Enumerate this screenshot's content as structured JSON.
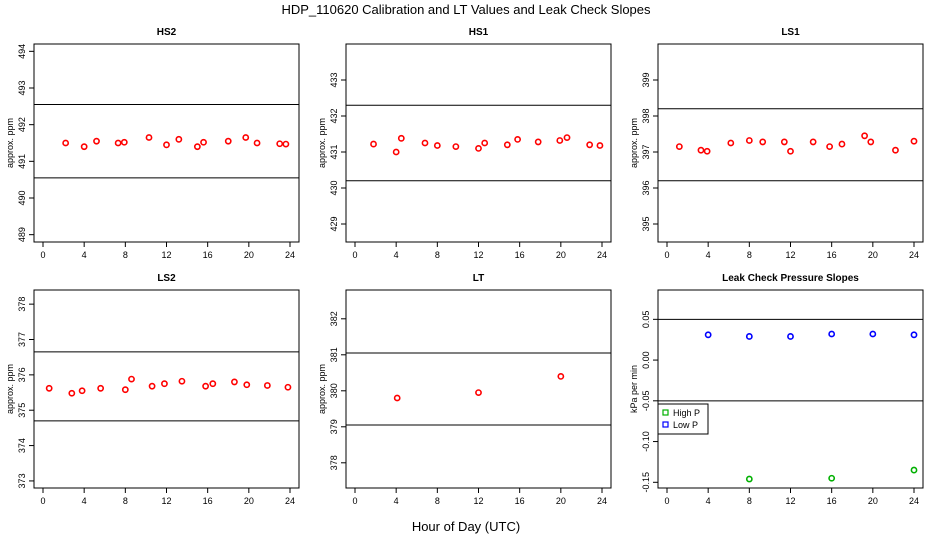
{
  "title": "HDP_110620  Calibration and LT Values and Leak Check Slopes",
  "x_axis_title": "Hour of Day (UTC)",
  "colors": {
    "cal": "#ff0000",
    "high_p": "#00b000",
    "low_p": "#0000ff",
    "line": "#000000"
  },
  "chart_data": [
    {
      "type": "scatter",
      "title": "HS2",
      "ylabel": "approx. ppm",
      "xlim": [
        0,
        24
      ],
      "ylim": [
        488.8,
        494.2
      ],
      "xticks": [
        0,
        4,
        8,
        12,
        16,
        20,
        24
      ],
      "xtick_labels": [
        "0",
        "4",
        "8",
        "12",
        "16",
        "20",
        "24"
      ],
      "yticks": [
        489,
        490,
        491,
        492,
        493,
        494
      ],
      "ytick_labels": [
        "489",
        "490",
        "491",
        "492",
        "493",
        "494"
      ],
      "hlines": [
        492.55,
        490.55
      ],
      "series": [
        {
          "color": "#ff0000",
          "points": [
            [
              2.2,
              491.5
            ],
            [
              4.0,
              491.4
            ],
            [
              5.2,
              491.55
            ],
            [
              7.3,
              491.5
            ],
            [
              7.9,
              491.52
            ],
            [
              10.3,
              491.65
            ],
            [
              12.0,
              491.45
            ],
            [
              13.2,
              491.6
            ],
            [
              15.0,
              491.4
            ],
            [
              15.6,
              491.52
            ],
            [
              18.0,
              491.55
            ],
            [
              19.7,
              491.65
            ],
            [
              20.8,
              491.5
            ],
            [
              23.0,
              491.48
            ],
            [
              23.6,
              491.47
            ]
          ]
        }
      ]
    },
    {
      "type": "scatter",
      "title": "HS1",
      "ylabel": "approx. ppm",
      "xlim": [
        0,
        24
      ],
      "ylim": [
        428.5,
        434.0
      ],
      "xticks": [
        0,
        4,
        8,
        12,
        16,
        20,
        24
      ],
      "xtick_labels": [
        "0",
        "4",
        "8",
        "12",
        "16",
        "20",
        "24"
      ],
      "yticks": [
        429,
        430,
        431,
        432,
        433
      ],
      "ytick_labels": [
        "429",
        "430",
        "431",
        "432",
        "433"
      ],
      "hlines": [
        432.3,
        430.2
      ],
      "series": [
        {
          "color": "#ff0000",
          "points": [
            [
              1.8,
              431.22
            ],
            [
              4.0,
              431.0
            ],
            [
              4.5,
              431.38
            ],
            [
              6.8,
              431.25
            ],
            [
              8.0,
              431.18
            ],
            [
              9.8,
              431.15
            ],
            [
              12.0,
              431.1
            ],
            [
              12.6,
              431.25
            ],
            [
              14.8,
              431.2
            ],
            [
              15.8,
              431.35
            ],
            [
              17.8,
              431.28
            ],
            [
              19.9,
              431.32
            ],
            [
              20.6,
              431.4
            ],
            [
              22.8,
              431.2
            ],
            [
              23.8,
              431.18
            ]
          ]
        }
      ]
    },
    {
      "type": "scatter",
      "title": "LS1",
      "ylabel": "approx. ppm",
      "xlim": [
        0,
        24
      ],
      "ylim": [
        394.5,
        400.0
      ],
      "xticks": [
        0,
        4,
        8,
        12,
        16,
        20,
        24
      ],
      "xtick_labels": [
        "0",
        "4",
        "8",
        "12",
        "16",
        "20",
        "24"
      ],
      "yticks": [
        395,
        396,
        397,
        398,
        399
      ],
      "ytick_labels": [
        "395",
        "396",
        "397",
        "398",
        "399"
      ],
      "hlines": [
        398.2,
        396.2
      ],
      "series": [
        {
          "color": "#ff0000",
          "points": [
            [
              1.2,
              397.15
            ],
            [
              3.3,
              397.05
            ],
            [
              3.9,
              397.02
            ],
            [
              6.2,
              397.25
            ],
            [
              8.0,
              397.32
            ],
            [
              9.3,
              397.28
            ],
            [
              11.4,
              397.28
            ],
            [
              12.0,
              397.02
            ],
            [
              14.2,
              397.28
            ],
            [
              15.8,
              397.15
            ],
            [
              17.0,
              397.22
            ],
            [
              19.2,
              397.45
            ],
            [
              19.8,
              397.28
            ],
            [
              22.2,
              397.05
            ],
            [
              24.0,
              397.3
            ]
          ]
        }
      ]
    },
    {
      "type": "scatter",
      "title": "LS2",
      "ylabel": "approx. ppm",
      "xlim": [
        0,
        24
      ],
      "ylim": [
        372.8,
        378.4
      ],
      "xticks": [
        0,
        4,
        8,
        12,
        16,
        20,
        24
      ],
      "xtick_labels": [
        "0",
        "4",
        "8",
        "12",
        "16",
        "20",
        "24"
      ],
      "yticks": [
        373,
        374,
        375,
        376,
        377,
        378
      ],
      "ytick_labels": [
        "373",
        "374",
        "375",
        "376",
        "377",
        "378"
      ],
      "hlines": [
        376.65,
        374.7
      ],
      "series": [
        {
          "color": "#ff0000",
          "points": [
            [
              0.6,
              375.62
            ],
            [
              2.8,
              375.48
            ],
            [
              3.8,
              375.55
            ],
            [
              5.6,
              375.62
            ],
            [
              8.0,
              375.58
            ],
            [
              8.6,
              375.88
            ],
            [
              10.6,
              375.68
            ],
            [
              11.8,
              375.75
            ],
            [
              13.5,
              375.82
            ],
            [
              15.8,
              375.68
            ],
            [
              16.5,
              375.75
            ],
            [
              18.6,
              375.8
            ],
            [
              19.8,
              375.72
            ],
            [
              21.8,
              375.7
            ],
            [
              23.8,
              375.65
            ]
          ]
        }
      ]
    },
    {
      "type": "scatter",
      "title": "LT",
      "ylabel": "approx. ppm",
      "xlim": [
        0,
        24
      ],
      "ylim": [
        377.3,
        382.8
      ],
      "xticks": [
        0,
        4,
        8,
        12,
        16,
        20,
        24
      ],
      "xtick_labels": [
        "0",
        "4",
        "8",
        "12",
        "16",
        "20",
        "24"
      ],
      "yticks": [
        378,
        379,
        380,
        381,
        382
      ],
      "ytick_labels": [
        "378",
        "379",
        "380",
        "381",
        "382"
      ],
      "hlines": [
        381.05,
        379.05
      ],
      "series": [
        {
          "color": "#ff0000",
          "points": [
            [
              4.1,
              379.8
            ],
            [
              12.0,
              379.95
            ],
            [
              20.0,
              380.4
            ]
          ]
        }
      ]
    },
    {
      "type": "scatter",
      "title": "Leak Check Pressure Slopes",
      "ylabel": "kPa per min",
      "xlim": [
        0,
        24
      ],
      "ylim": [
        -0.157,
        0.086
      ],
      "xticks": [
        0,
        4,
        8,
        12,
        16,
        20,
        24
      ],
      "xtick_labels": [
        "0",
        "4",
        "8",
        "12",
        "16",
        "20",
        "24"
      ],
      "yticks": [
        0.05,
        0.0,
        -0.05,
        -0.1,
        -0.15
      ],
      "ytick_labels": [
        "0.05",
        "0.00",
        "-0.05",
        "-0.10",
        "-0.15"
      ],
      "hlines": [
        0.05,
        -0.05
      ],
      "legend": {
        "placement": "left",
        "entries": [
          {
            "label": "High P",
            "color": "#00b000"
          },
          {
            "label": "Low P",
            "color": "#0000ff"
          }
        ]
      },
      "series": [
        {
          "name": "High P",
          "color": "#00b000",
          "points": [
            [
              8.0,
              -0.146
            ],
            [
              16.0,
              -0.145
            ],
            [
              24.0,
              -0.135
            ]
          ]
        },
        {
          "name": "Low P",
          "color": "#0000ff",
          "points": [
            [
              4.0,
              0.031
            ],
            [
              8.0,
              0.029
            ],
            [
              12.0,
              0.029
            ],
            [
              16.0,
              0.032
            ],
            [
              20.0,
              0.032
            ],
            [
              24.0,
              0.031
            ]
          ]
        }
      ]
    }
  ]
}
